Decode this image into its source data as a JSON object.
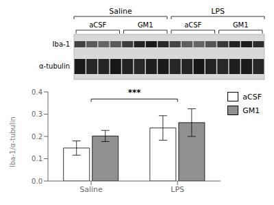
{
  "chart_data": {
    "type": "bar",
    "categories": [
      "Saline",
      "LPS"
    ],
    "series": [
      {
        "name": "aCSF",
        "color": "#ffffff",
        "values": [
          0.148,
          0.238
        ],
        "errors": [
          0.032,
          0.055
        ]
      },
      {
        "name": "GM1",
        "color": "#909090",
        "values": [
          0.202,
          0.262
        ],
        "errors": [
          0.025,
          0.062
        ]
      }
    ],
    "ylabel": "Iba-1/α-tubulin",
    "ylim": [
      0.0,
      0.4
    ],
    "yticks": [
      {
        "value": 0.0,
        "label": "0.0"
      },
      0.1,
      0.2,
      0.3,
      0.4
    ],
    "grid": false,
    "legend": "right",
    "annotations": [
      {
        "text": "Saline"
      },
      {
        "text": "LPS"
      },
      {
        "text": "aCSF"
      },
      {
        "text": "GM1"
      },
      {
        "text": "aCSF"
      },
      {
        "text": "GM1"
      },
      {
        "text": "Iba-1"
      },
      {
        "text": "α-tubulin"
      },
      {
        "text": "***",
        "y": 0.368,
        "y_from": 0.355
      }
    ]
  }
}
